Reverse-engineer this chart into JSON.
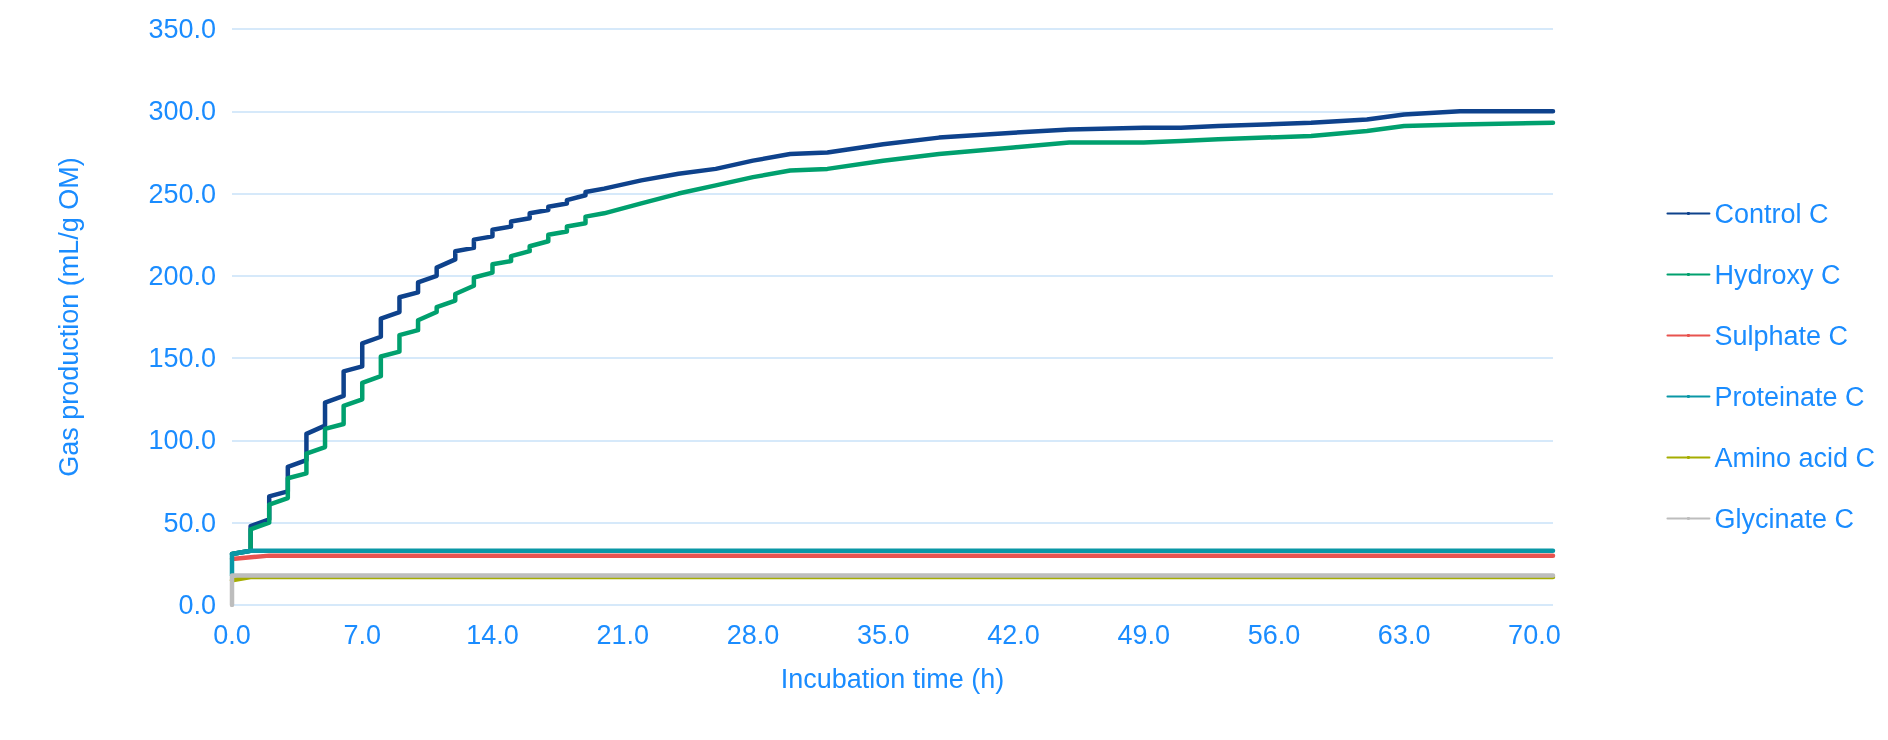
{
  "chart_data": {
    "type": "line",
    "xlabel": "Incubation time (h)",
    "ylabel": "Gas production (mL/g OM)",
    "xlim": [
      0,
      71
    ],
    "xticks": [
      {
        "value": 0,
        "label": "0.0"
      },
      {
        "value": 7,
        "label": "7.0"
      },
      {
        "value": 14,
        "label": "14.0"
      },
      {
        "value": 21,
        "label": "21.0"
      },
      {
        "value": 28,
        "label": "28.0"
      },
      {
        "value": 35,
        "label": "35.0"
      },
      {
        "value": 42,
        "label": "42.0"
      },
      {
        "value": 49,
        "label": "49.0"
      },
      {
        "value": 56,
        "label": "56.0"
      },
      {
        "value": 63,
        "label": "63.0"
      },
      {
        "value": 70,
        "label": "70.0"
      }
    ],
    "ylim": [
      0,
      350
    ],
    "yticks": [
      {
        "value": 0,
        "label": "0.0"
      },
      {
        "value": 50,
        "label": "50.0"
      },
      {
        "value": 100,
        "label": "100.0"
      },
      {
        "value": 150,
        "label": "150.0"
      },
      {
        "value": 200,
        "label": "200.0"
      },
      {
        "value": 250,
        "label": "250.0"
      },
      {
        "value": 300,
        "label": "300.0"
      },
      {
        "value": 350,
        "label": "350.0"
      }
    ],
    "grid": "y",
    "legend": "right",
    "marker": "none",
    "line_style": "solid",
    "series": [
      {
        "name": "Control C",
        "color": "#0e428c",
        "x": [
          0,
          1,
          1,
          2,
          2,
          3,
          3,
          4,
          4,
          5,
          5,
          6,
          6,
          7,
          7,
          8,
          8,
          9,
          9,
          10,
          10,
          11,
          11,
          12,
          12,
          13,
          13,
          14,
          14,
          15,
          15,
          16,
          16,
          17,
          17,
          18,
          18,
          19,
          19,
          20,
          22,
          24,
          26,
          28,
          30,
          32,
          35,
          38,
          42,
          45,
          49,
          51,
          53,
          58,
          61,
          63,
          66,
          71
        ],
        "values": [
          31,
          33,
          48,
          52,
          66,
          69,
          84,
          88,
          104,
          109,
          123,
          127,
          142,
          145,
          159,
          163,
          174,
          178,
          187,
          190,
          196,
          200,
          205,
          210,
          215,
          217,
          222,
          224,
          228,
          230,
          233,
          235,
          238,
          240,
          242,
          244,
          246,
          249,
          251,
          253,
          258,
          262,
          265,
          270,
          274,
          275,
          280,
          284,
          287,
          289,
          290,
          290,
          291,
          293,
          295,
          298,
          300,
          300
        ]
      },
      {
        "name": "Hydroxy C",
        "color": "#00a06e",
        "x": [
          0,
          1,
          1,
          2,
          2,
          3,
          3,
          4,
          4,
          5,
          5,
          6,
          6,
          7,
          7,
          8,
          8,
          9,
          9,
          10,
          10,
          11,
          11,
          12,
          12,
          13,
          13,
          14,
          14,
          15,
          15,
          16,
          16,
          17,
          17,
          18,
          18,
          19,
          19,
          20,
          22,
          24,
          26,
          28,
          30,
          32,
          35,
          38,
          42,
          45,
          49,
          51,
          53,
          58,
          61,
          63,
          66,
          71
        ],
        "values": [
          31,
          33,
          46,
          50,
          61,
          65,
          77,
          80,
          92,
          96,
          107,
          110,
          121,
          125,
          135,
          139,
          151,
          154,
          164,
          167,
          173,
          178,
          181,
          185,
          189,
          194,
          199,
          202,
          207,
          209,
          212,
          215,
          218,
          221,
          225,
          227,
          230,
          232,
          236,
          238,
          244,
          250,
          255,
          260,
          264,
          265,
          270,
          274,
          278,
          281,
          281,
          282,
          283,
          285,
          288,
          291,
          292,
          293
        ]
      },
      {
        "name": "Sulphate C",
        "color": "#e8534f",
        "x": [
          0,
          1,
          2,
          71
        ],
        "values": [
          28,
          29,
          30,
          30
        ]
      },
      {
        "name": "Proteinate C",
        "color": "#0a97a6",
        "x": [
          0,
          0,
          1,
          71
        ],
        "values": [
          18,
          31,
          33,
          33
        ]
      },
      {
        "name": "Amino acid C",
        "color": "#a5ad00",
        "x": [
          0,
          1,
          71
        ],
        "values": [
          15,
          17,
          17
        ]
      },
      {
        "name": "Glycinate C",
        "color": "#bdbdbd",
        "x": [
          0,
          0,
          71
        ],
        "values": [
          0,
          18,
          18
        ]
      }
    ]
  }
}
